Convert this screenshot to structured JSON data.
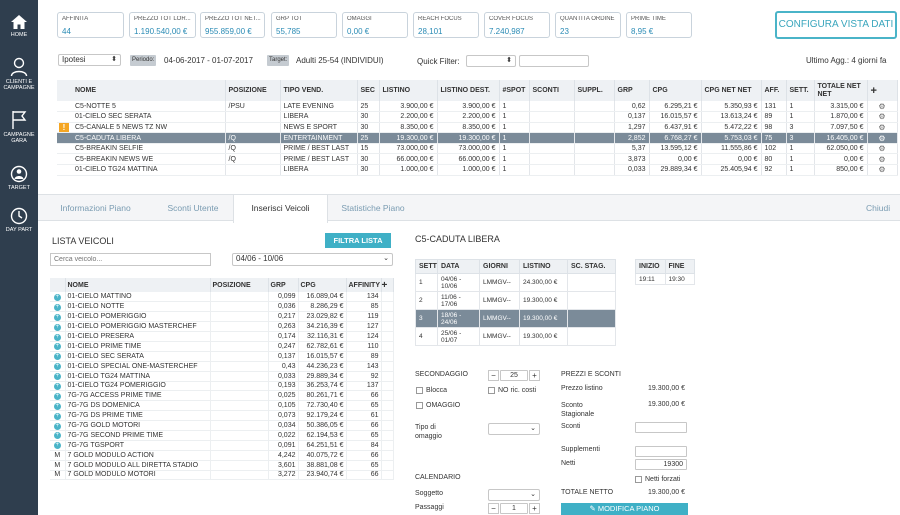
{
  "nav": [
    {
      "label": "HOME",
      "icon": "home-icon"
    },
    {
      "label": "CLIENTI E CAMPAGNE",
      "icon": "user-icon"
    },
    {
      "label": "CAMPAGNE GARA",
      "icon": "flag-icon"
    },
    {
      "label": "TARGET",
      "icon": "target-icon"
    },
    {
      "label": "DAY PART",
      "icon": "clock-icon"
    }
  ],
  "kpis": [
    {
      "label": "AFFINITA",
      "value": "44"
    },
    {
      "label": "PREZZO TOT LOR...",
      "value": "1.190.540,00 €"
    },
    {
      "label": "PREZZO TOT NET...",
      "value": "955.859,00 €"
    },
    {
      "label": "GRP TOT",
      "value": "55,785"
    },
    {
      "label": "OMAGGI",
      "value": "0,00 €"
    },
    {
      "label": "REACH FOCUS",
      "value": "28,101"
    },
    {
      "label": "COVER FOCUS",
      "value": "7.240,987"
    },
    {
      "label": "QUANTITA ORDINE",
      "value": "23"
    },
    {
      "label": "PRIME TIME",
      "value": "8,95 €"
    }
  ],
  "configura_label": "CONFIGURA VISTA DATI",
  "filters": {
    "type_value": "Ipotesi",
    "periodo_tag": "Periodo:",
    "periodo_value": "04-06-2017 - 01-07-2017",
    "target_tag": "Target:",
    "target_value": "Adulti 25-54 (INDIVIDUI)",
    "quick_filter_label": "Quick Filter:",
    "last_update": "Ultimo Agg.: 4 giorni fa"
  },
  "top_table": {
    "headers": [
      "NOME",
      "POSIZIONE",
      "TIPO VEND.",
      "SEC",
      "LISTINO",
      "LISTINO DEST.",
      "#SPOT",
      "SCONTI",
      "SUPPL.",
      "GRP",
      "CPG",
      "CPG NET NET",
      "AFF.",
      "SETT.",
      "TOTALE NET NET"
    ],
    "rows": [
      {
        "warn": false,
        "selected": false,
        "cells": [
          "C5-NOTTE 5",
          "/PSU",
          "LATE EVENING",
          "25",
          "3.900,00 €",
          "3.900,00 €",
          "1",
          "",
          "",
          "0,62",
          "6.295,21 €",
          "5.350,93 €",
          "131",
          "1",
          "3.315,00 €"
        ]
      },
      {
        "warn": false,
        "selected": false,
        "cells": [
          "01-CIELO SEC SERATA",
          "",
          "LIBERA",
          "30",
          "2.200,00 €",
          "2.200,00 €",
          "1",
          "",
          "",
          "0,137",
          "16.015,57 €",
          "13.613,24 €",
          "89",
          "1",
          "1.870,00 €"
        ]
      },
      {
        "warn": true,
        "selected": false,
        "cells": [
          "C5-CANALE 5 NEWS TZ NW",
          "",
          "NEWS E SPORT",
          "30",
          "8.350,00 €",
          "8.350,00 €",
          "1",
          "",
          "",
          "1,297",
          "6.437,91 €",
          "5.472,22 €",
          "98",
          "3",
          "7.097,50 €"
        ]
      },
      {
        "warn": false,
        "selected": true,
        "cells": [
          "C5-CADUTA LIBERA",
          "/Q",
          "ENTERTAINMENT",
          "25",
          "19.300,00 €",
          "19.300,00 €",
          "1",
          "",
          "",
          "2,852",
          "6.768,27 €",
          "5.753,03 €",
          "75",
          "3",
          "16.405,00 €"
        ]
      },
      {
        "warn": false,
        "selected": false,
        "cells": [
          "C5-BREAKIN SELFIE",
          "/Q",
          "PRIME / BEST LAST",
          "15",
          "73.000,00 €",
          "73.000,00 €",
          "1",
          "",
          "",
          "5,37",
          "13.595,12 €",
          "11.555,86 €",
          "102",
          "1",
          "62.050,00 €"
        ]
      },
      {
        "warn": false,
        "selected": false,
        "cells": [
          "C5-BREAKIN NEWS WE",
          "/Q",
          "PRIME / BEST LAST",
          "30",
          "66.000,00 €",
          "66.000,00 €",
          "1",
          "",
          "",
          "3,873",
          "0,00 €",
          "0,00 €",
          "80",
          "1",
          "0,00 €"
        ]
      },
      {
        "warn": false,
        "selected": false,
        "cells": [
          "01-CIELO TG24 MATTINA",
          "",
          "LIBERA",
          "30",
          "1.000,00 €",
          "1.000,00 €",
          "1",
          "",
          "",
          "0,033",
          "29.889,34 €",
          "25.405,94 €",
          "92",
          "1",
          "850,00 €"
        ]
      }
    ]
  },
  "tabs": [
    {
      "label": "Informazioni Piano",
      "active": false
    },
    {
      "label": "Sconti Utente",
      "active": false
    },
    {
      "label": "Inserisci Veicoli",
      "active": true
    },
    {
      "label": "Statistiche Piano",
      "active": false
    }
  ],
  "close_label": "Chiudi",
  "vehicles": {
    "title": "LISTA VEICOLI",
    "filter_button": "FILTRA LISTA",
    "search_placeholder": "Cerca veicolo...",
    "week_value": "04/06 - 10/06",
    "headers": [
      "NOME",
      "POSIZIONE",
      "GRP",
      "CPG",
      "AFFINITY"
    ],
    "rows": [
      {
        "m": false,
        "cells": [
          "01-CIELO MATTINO",
          "",
          "0,099",
          "16.089,04 €",
          "134"
        ]
      },
      {
        "m": false,
        "cells": [
          "01-CIELO NOTTE",
          "",
          "0,036",
          "8.286,29 €",
          "85"
        ]
      },
      {
        "m": false,
        "cells": [
          "01-CIELO POMERIGGIO",
          "",
          "0,217",
          "23.029,82 €",
          "119"
        ]
      },
      {
        "m": false,
        "cells": [
          "01-CIELO POMERIGGIO MASTERCHEF",
          "",
          "0,263",
          "34.216,39 €",
          "127"
        ]
      },
      {
        "m": false,
        "cells": [
          "01-CIELO PRESERA",
          "",
          "0,174",
          "32.116,31 €",
          "124"
        ]
      },
      {
        "m": false,
        "cells": [
          "01-CIELO PRIME TIME",
          "",
          "0,247",
          "62.782,61 €",
          "110"
        ]
      },
      {
        "m": false,
        "cells": [
          "01-CIELO SEC SERATA",
          "",
          "0,137",
          "16.015,57 €",
          "89"
        ]
      },
      {
        "m": false,
        "cells": [
          "01-CIELO SPECIAL ONE-MASTERCHEF",
          "",
          "0,43",
          "44.236,23 €",
          "143"
        ]
      },
      {
        "m": false,
        "cells": [
          "01-CIELO TG24 MATTINA",
          "",
          "0,033",
          "29.889,34 €",
          "92"
        ]
      },
      {
        "m": false,
        "cells": [
          "01-CIELO TG24 POMERIGGIO",
          "",
          "0,193",
          "36.253,74 €",
          "137"
        ]
      },
      {
        "m": false,
        "cells": [
          "7G-7G ACCESS PRIME TIME",
          "",
          "0,025",
          "80.261,71 €",
          "66"
        ]
      },
      {
        "m": false,
        "cells": [
          "7G-7G DS DOMENICA",
          "",
          "0,105",
          "72.730,40 €",
          "65"
        ]
      },
      {
        "m": false,
        "cells": [
          "7G-7G DS PRIME TIME",
          "",
          "0,073",
          "92.179,24 €",
          "61"
        ]
      },
      {
        "m": false,
        "cells": [
          "7G-7G GOLD MOTORI",
          "",
          "0,034",
          "50.386,05 €",
          "66"
        ]
      },
      {
        "m": false,
        "cells": [
          "7G-7G SECOND PRIME TIME",
          "",
          "0,022",
          "62.194,53 €",
          "65"
        ]
      },
      {
        "m": false,
        "cells": [
          "7G-7G TGSPORT",
          "",
          "0,091",
          "64.251,51 €",
          "84"
        ]
      },
      {
        "m": true,
        "cells": [
          "7 GOLD MODULO ACTION",
          "",
          "4,242",
          "40.075,72 €",
          "66"
        ]
      },
      {
        "m": true,
        "cells": [
          "7 GOLD MODULO ALL DIRETTA STADIO",
          "",
          "3,601",
          "38.881,08 €",
          "65"
        ]
      },
      {
        "m": true,
        "cells": [
          "7 GOLD MODULO MOTORI",
          "",
          "3,272",
          "23.940,74 €",
          "66"
        ]
      }
    ]
  },
  "detail": {
    "title": "C5-CADUTA LIBERA",
    "sett_headers": [
      "SETT",
      "DATA",
      "GIORNI",
      "LISTINO",
      "SC. STAG."
    ],
    "sett_rows": [
      {
        "selected": false,
        "cells": [
          "1",
          "04/06 - 10/06",
          "LMMGV--",
          "24.300,00 €",
          ""
        ]
      },
      {
        "selected": false,
        "cells": [
          "2",
          "11/06 - 17/06",
          "LMMGV--",
          "19.300,00 €",
          ""
        ]
      },
      {
        "selected": true,
        "cells": [
          "3",
          "18/06 - 24/06",
          "LMMGV--",
          "19.300,00 €",
          ""
        ]
      },
      {
        "selected": false,
        "cells": [
          "4",
          "25/06 - 01/07",
          "LMMGV--",
          "19.300,00 €",
          ""
        ]
      }
    ],
    "inizio_headers": [
      "INIZIO",
      "FINE"
    ],
    "inizio_row": [
      "19:11",
      "19:30"
    ],
    "secondaggio_label": "SECONDAGGIO",
    "secondaggio_value": "25",
    "blocca_label": "Blocca",
    "no_ric_label": "NO ric. costi",
    "omaggio_label": "OMAGGIO",
    "tipo_omaggio_label": "Tipo di omaggio",
    "calendario_label": "CALENDARIO",
    "soggetto_label": "Soggetto",
    "passaggi_label": "Passaggi",
    "passaggi_value": "1",
    "prezzi_title": "PREZZI E SCONTI",
    "prezzo_listino_label": "Prezzo listino",
    "prezzo_listino_value": "19.300,00 €",
    "sconto_stag_label": "Sconto Stagionale",
    "sconto_stag_value": "19.300,00 €",
    "sconti_label": "Sconti",
    "supplementi_label": "Supplementi",
    "netti_label": "Netti",
    "netti_value": "19300",
    "netti_forzati_label": "Netti forzati",
    "totale_label": "TOTALE NETTO",
    "totale_value": "19.300,00 €",
    "modifica_label": "MODIFICA PIANO"
  },
  "colors": {
    "nav_bg": "#2f3e4e",
    "accent": "#4ab4c8",
    "selected_row": "#7b8b99",
    "warning": "#f5a623"
  }
}
